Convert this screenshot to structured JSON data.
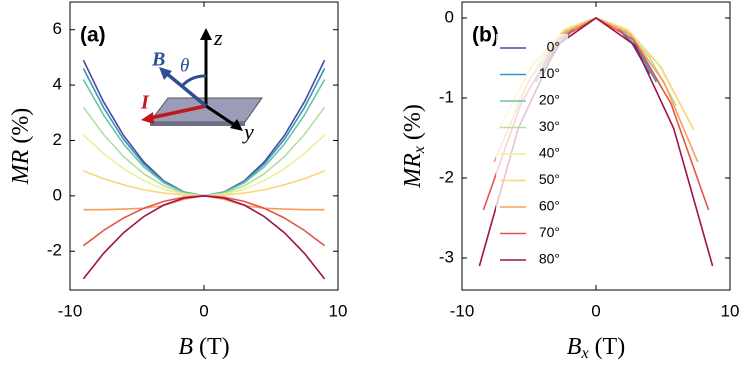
{
  "chart_data": [
    {
      "type": "line",
      "panel_label": "(a)",
      "xlabel": {
        "symbol": "B",
        "unit": "(T)"
      },
      "ylabel": {
        "symbol": "MR",
        "unit": "(%)"
      },
      "annotations": [
        "B",
        "θ",
        "z",
        "I",
        "y"
      ],
      "xlim": [
        -10,
        10
      ],
      "ylim": [
        -3.4,
        7
      ],
      "xticks": [
        -10,
        0,
        10
      ],
      "yticks": [
        -2,
        0,
        2,
        4,
        6
      ],
      "x": [
        -9,
        -7.5,
        -6,
        -4.5,
        -3,
        -1.5,
        0,
        1.5,
        3,
        4.5,
        6,
        7.5,
        9
      ],
      "series": [
        {
          "color": "#4b4a9e",
          "values": [
            4.9,
            3.4,
            2.18,
            1.23,
            0.54,
            0.14,
            0,
            0.14,
            0.54,
            1.23,
            2.18,
            3.4,
            4.9
          ]
        },
        {
          "color": "#3a92c0",
          "values": [
            4.6,
            3.19,
            2.04,
            1.15,
            0.51,
            0.13,
            0,
            0.13,
            0.51,
            1.15,
            2.04,
            3.19,
            4.6
          ]
        },
        {
          "color": "#6cc3a6",
          "values": [
            4.2,
            2.92,
            1.87,
            1.05,
            0.47,
            0.12,
            0,
            0.12,
            0.47,
            1.05,
            1.87,
            2.92,
            4.2
          ]
        },
        {
          "color": "#b3df9f",
          "values": [
            3.2,
            2.22,
            1.42,
            0.8,
            0.36,
            0.09,
            0,
            0.09,
            0.36,
            0.8,
            1.42,
            2.22,
            3.2
          ]
        },
        {
          "color": "#e9f29a",
          "values": [
            2.2,
            1.53,
            0.98,
            0.55,
            0.24,
            0.06,
            0,
            0.06,
            0.24,
            0.55,
            0.98,
            1.53,
            2.2
          ]
        },
        {
          "color": "#fcd57f",
          "values": [
            0.9,
            0.62,
            0.4,
            0.22,
            0.1,
            0.03,
            0,
            0.03,
            0.1,
            0.22,
            0.4,
            0.62,
            0.9
          ]
        },
        {
          "color": "#f99e5a",
          "values": [
            -0.5,
            -0.5,
            -0.48,
            -0.45,
            -0.35,
            -0.12,
            0,
            -0.12,
            -0.35,
            -0.45,
            -0.48,
            -0.5,
            -0.5
          ]
        },
        {
          "color": "#e4554a",
          "values": [
            -1.8,
            -1.25,
            -0.8,
            -0.45,
            -0.2,
            -0.05,
            0,
            -0.05,
            -0.2,
            -0.45,
            -0.8,
            -1.25,
            -1.8
          ]
        },
        {
          "color": "#a0124a",
          "values": [
            -3.0,
            -2.08,
            -1.33,
            -0.75,
            -0.33,
            -0.08,
            0,
            -0.08,
            -0.33,
            -0.75,
            -1.33,
            -2.08,
            -3.0
          ]
        }
      ]
    },
    {
      "type": "line",
      "panel_label": "(b)",
      "xlabel": {
        "symbol": "B",
        "sub": "x",
        "unit": "(T)"
      },
      "ylabel": {
        "symbol": "MR",
        "sub": "x",
        "unit": "(%)"
      },
      "xlim": [
        -10,
        10
      ],
      "ylim": [
        -3.4,
        0.2
      ],
      "xticks": [
        -10,
        0,
        10
      ],
      "yticks": [
        -3,
        -2,
        -1,
        0
      ],
      "series": [
        {
          "name": "0°",
          "color": "#4b4a9e",
          "x": [
            -4,
            -2.67,
            -1.33,
            0,
            1.33,
            2.67,
            4
          ],
          "values": [
            -0.7,
            -0.31,
            -0.08,
            0,
            -0.08,
            -0.31,
            -0.7
          ]
        },
        {
          "name": "10°",
          "color": "#3a92c0",
          "x": [
            -4.5,
            -3,
            -1.5,
            0,
            1.5,
            3,
            4.5
          ],
          "values": [
            -0.8,
            -0.36,
            -0.09,
            0,
            -0.09,
            -0.36,
            -0.8
          ]
        },
        {
          "name": "20°",
          "color": "#6cc3a6",
          "x": [
            -5,
            -3.33,
            -1.67,
            0,
            1.67,
            3.33,
            5
          ],
          "values": [
            -0.9,
            -0.4,
            -0.1,
            0,
            -0.1,
            -0.4,
            -0.9
          ]
        },
        {
          "name": "30°",
          "color": "#b3df9f",
          "x": [
            -6,
            -4,
            -2,
            0,
            2,
            4,
            6
          ],
          "values": [
            -1.1,
            -0.49,
            -0.12,
            0,
            -0.12,
            -0.49,
            -1.1
          ]
        },
        {
          "name": "40°",
          "color": "#e9f29a",
          "x": [
            -7,
            -4.67,
            -2.33,
            0,
            2.33,
            4.67,
            7
          ],
          "values": [
            -1.3,
            -0.58,
            -0.14,
            0,
            -0.14,
            -0.58,
            -1.3
          ]
        },
        {
          "name": "50°",
          "color": "#fcd57f",
          "x": [
            -7.3,
            -4.87,
            -2.43,
            0,
            2.43,
            4.87,
            7.3
          ],
          "values": [
            -1.4,
            -0.62,
            -0.16,
            0,
            -0.16,
            -0.62,
            -1.4
          ]
        },
        {
          "name": "60°",
          "color": "#f99e5a",
          "x": [
            -7.6,
            -5.07,
            -2.53,
            0,
            2.53,
            5.07,
            7.6
          ],
          "values": [
            -1.8,
            -0.8,
            -0.2,
            0,
            -0.2,
            -0.8,
            -1.8
          ]
        },
        {
          "name": "70°",
          "color": "#e4554a",
          "x": [
            -8.4,
            -5.6,
            -2.8,
            0,
            2.8,
            5.6,
            8.4
          ],
          "values": [
            -2.4,
            -1.07,
            -0.27,
            0,
            -0.27,
            -1.07,
            -2.4
          ]
        },
        {
          "name": "80°",
          "color": "#a0124a",
          "x": [
            -8.7,
            -5.8,
            -2.9,
            0,
            2.9,
            5.8,
            8.7
          ],
          "values": [
            -3.1,
            -1.38,
            -0.34,
            0,
            -0.34,
            -1.38,
            -3.1
          ]
        }
      ]
    }
  ]
}
